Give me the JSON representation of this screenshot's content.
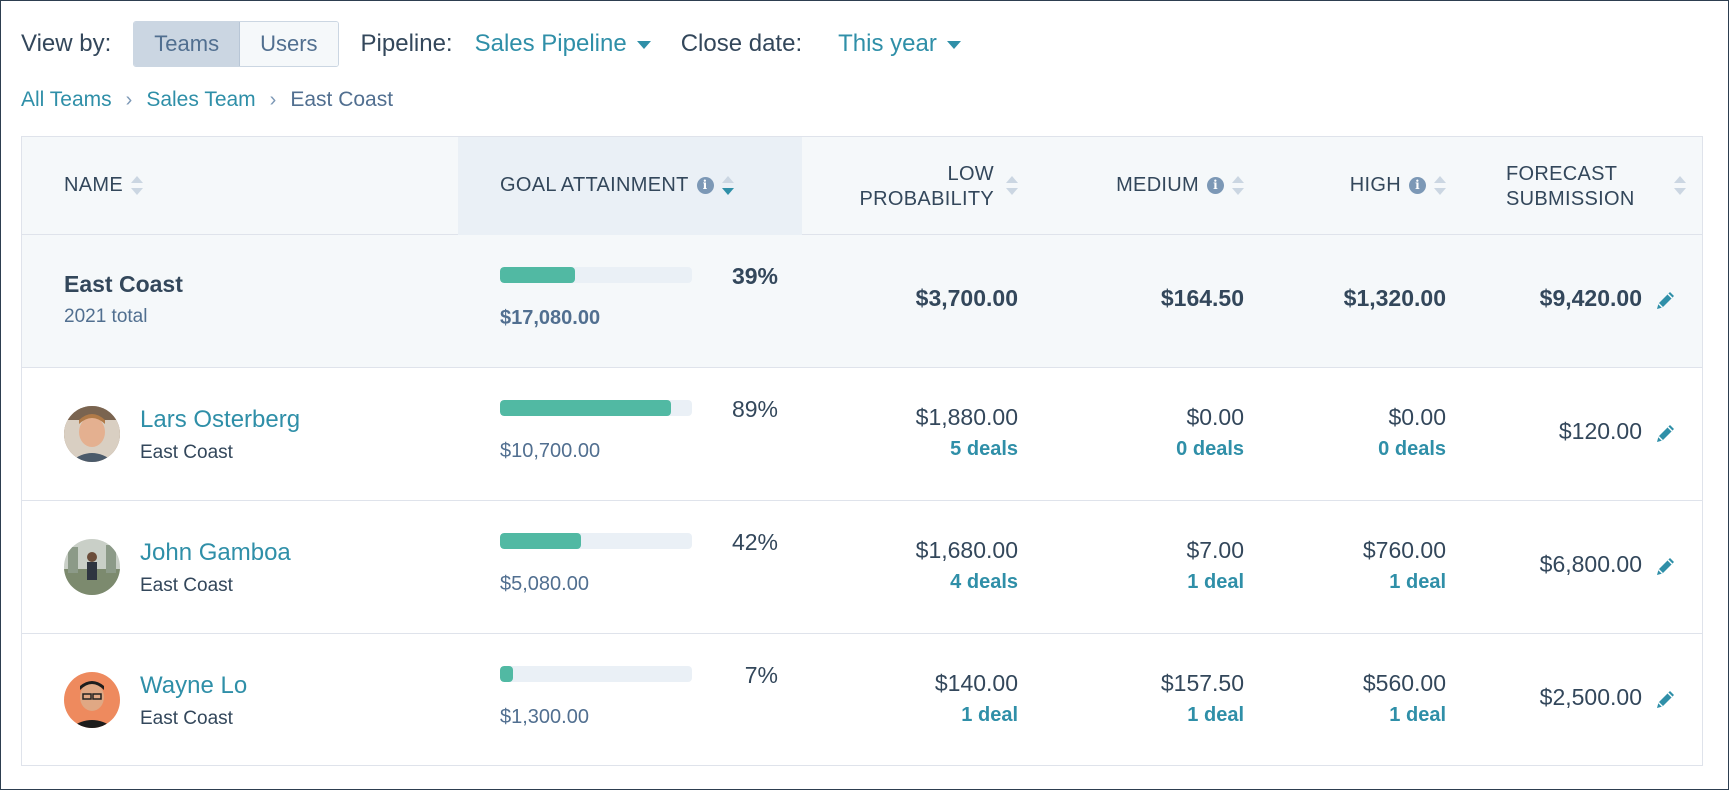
{
  "filters": {
    "view_by_label": "View by:",
    "view_options": [
      "Teams",
      "Users"
    ],
    "view_selected": "Teams",
    "pipeline_label": "Pipeline:",
    "pipeline_value": "Sales Pipeline",
    "close_date_label": "Close date:",
    "close_date_value": "This year"
  },
  "breadcrumb": {
    "items": [
      "All Teams",
      "Sales Team"
    ],
    "current": "East Coast",
    "separator": "›"
  },
  "table": {
    "headers": {
      "name": "NAME",
      "goal": "GOAL ATTAINMENT",
      "low_1": "LOW",
      "low_2": "PROBABILITY",
      "medium": "MEDIUM",
      "high": "HIGH",
      "forecast_1": "FORECAST",
      "forecast_2": "SUBMISSION"
    },
    "total": {
      "name": "East Coast",
      "sub": "2021 total",
      "goal_pct": "39%",
      "goal_fraction": 0.39,
      "goal_amount": "$17,080.00",
      "low": "$3,700.00",
      "medium": "$164.50",
      "high": "$1,320.00",
      "forecast": "$9,420.00"
    },
    "rows": [
      {
        "name": "Lars Osterberg",
        "team": "East Coast",
        "goal_pct": "89%",
        "goal_fraction": 0.89,
        "goal_amount": "$10,700.00",
        "low": "$1,880.00",
        "low_deals": "5 deals",
        "medium": "$0.00",
        "medium_deals": "0 deals",
        "high": "$0.00",
        "high_deals": "0 deals",
        "forecast": "$120.00"
      },
      {
        "name": "John Gamboa",
        "team": "East Coast",
        "goal_pct": "42%",
        "goal_fraction": 0.42,
        "goal_amount": "$5,080.00",
        "low": "$1,680.00",
        "low_deals": "4 deals",
        "medium": "$7.00",
        "medium_deals": "1 deal",
        "high": "$760.00",
        "high_deals": "1 deal",
        "forecast": "$6,800.00"
      },
      {
        "name": "Wayne Lo",
        "team": "East Coast",
        "goal_pct": "7%",
        "goal_fraction": 0.07,
        "goal_amount": "$1,300.00",
        "low": "$140.00",
        "low_deals": "1 deal",
        "medium": "$157.50",
        "medium_deals": "1 deal",
        "high": "$560.00",
        "high_deals": "1 deal",
        "forecast": "$2,500.00"
      }
    ]
  },
  "colors": {
    "accent": "#2f8fa8",
    "progress": "#51b9a3",
    "text": "#33475b"
  }
}
